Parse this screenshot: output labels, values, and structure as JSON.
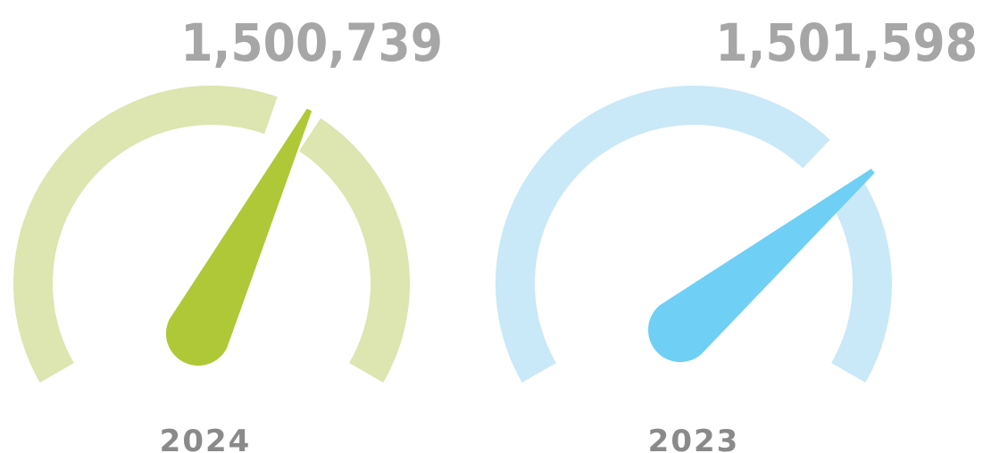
{
  "chart_data": [
    {
      "type": "gauge",
      "label": "2024",
      "value": 1500739,
      "value_text": "1,500,739",
      "needle_fraction": 0.61,
      "track_color": "#dde5b0",
      "needle_color": "#afc837"
    },
    {
      "type": "gauge",
      "label": "2023",
      "value": 1501598,
      "value_text": "1,501,598",
      "needle_fraction": 0.71,
      "track_color": "#c9e8f8",
      "needle_color": "#6fcff5"
    }
  ]
}
